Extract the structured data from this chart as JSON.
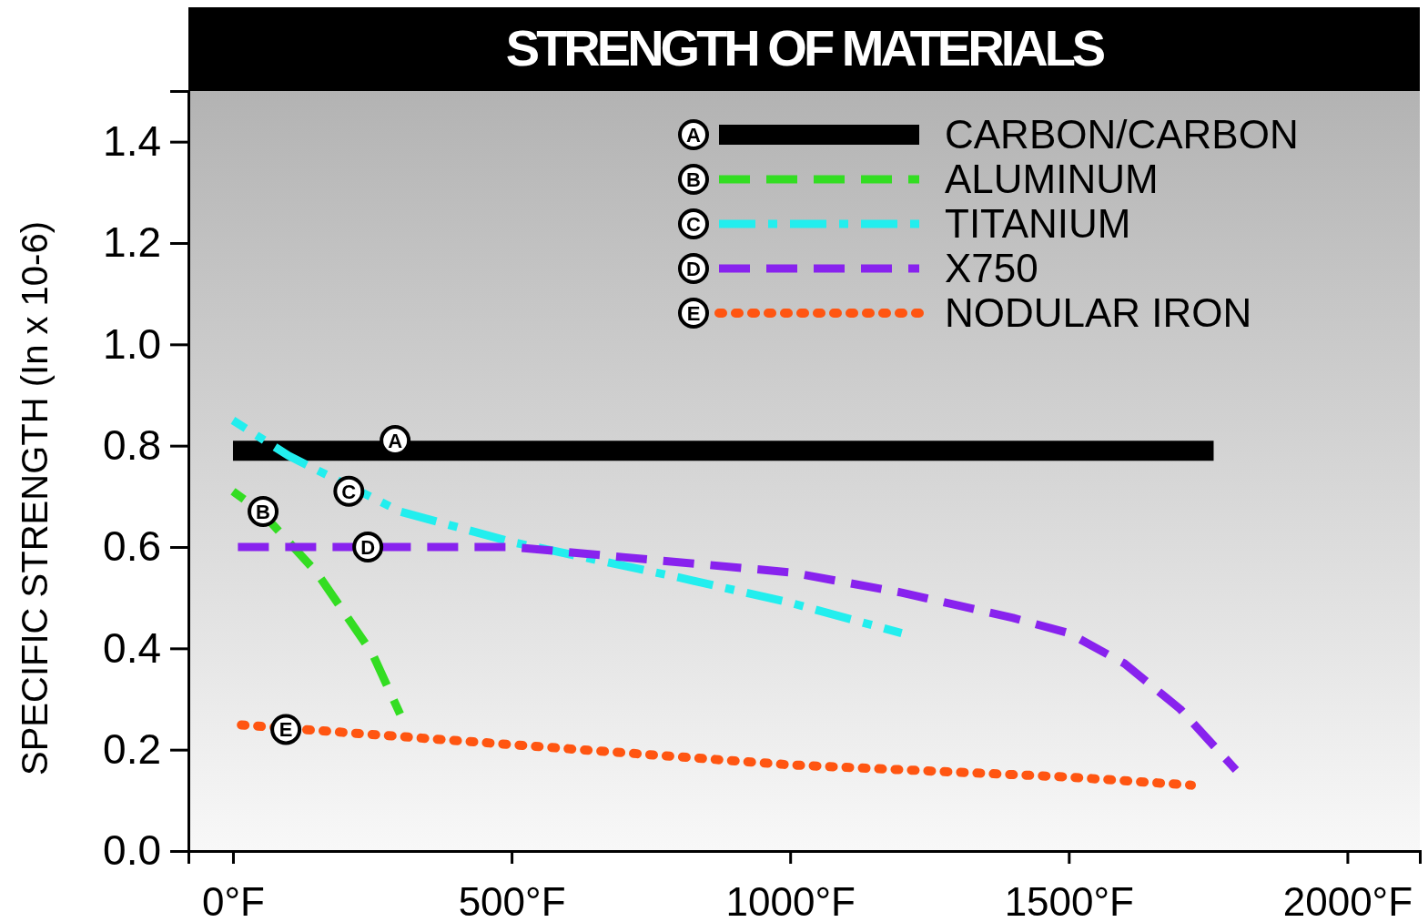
{
  "chart_data": {
    "type": "line",
    "title": "STRENGTH OF MATERIALS",
    "ylabel": "SPECIFIC STRENGTH (In x 10-6)",
    "xlim": [
      -80,
      2130
    ],
    "ylim": [
      0,
      1.5
    ],
    "xticks": [
      {
        "value": 0,
        "label": "0°F"
      },
      {
        "value": 500,
        "label": "500°F"
      },
      {
        "value": 1000,
        "label": "1000°F"
      },
      {
        "value": 1500,
        "label": "1500°F"
      },
      {
        "value": 2000,
        "label": "2000°F"
      }
    ],
    "yticks": [
      {
        "value": 0,
        "label": "0.0"
      },
      {
        "value": 0.2,
        "label": "0.2"
      },
      {
        "value": 0.4,
        "label": "0.4"
      },
      {
        "value": 0.6,
        "label": "0.6"
      },
      {
        "value": 0.8,
        "label": "0.8"
      },
      {
        "value": 1.0,
        "label": "1.0"
      },
      {
        "value": 1.2,
        "label": "1.2"
      },
      {
        "value": 1.4,
        "label": "1.4"
      }
    ],
    "legend": "top right",
    "grid": false,
    "marker": "none",
    "series": [
      {
        "name": "CARBON/CARBON",
        "color": "#000000",
        "line_style": "solid",
        "x": [
          0,
          1760
        ],
        "values": [
          0.79,
          0.79
        ]
      },
      {
        "name": "ALUMINUM",
        "color": "#33dd22",
        "line_style": "dashed",
        "x": [
          0,
          50,
          100,
          150,
          200,
          250,
          300
        ],
        "values": [
          0.71,
          0.67,
          0.61,
          0.55,
          0.47,
          0.39,
          0.27
        ]
      },
      {
        "name": "TITANIUM",
        "color": "#22eeee",
        "line_style": "dashdot",
        "x": [
          0,
          100,
          300,
          500,
          800,
          1000,
          1200
        ],
        "values": [
          0.85,
          0.78,
          0.67,
          0.61,
          0.54,
          0.49,
          0.43
        ]
      },
      {
        "name": "X750",
        "color": "#8822ee",
        "line_style": "dashed",
        "x": [
          0,
          500,
          700,
          1000,
          1200,
          1400,
          1500,
          1600,
          1700,
          1800
        ],
        "values": [
          0.6,
          0.6,
          0.58,
          0.55,
          0.51,
          0.46,
          0.43,
          0.37,
          0.28,
          0.16
        ]
      },
      {
        "name": "NODULAR IRON",
        "color": "#ff5511",
        "line_style": "dotted",
        "x": [
          0,
          500,
          1000,
          1500,
          1720
        ],
        "values": [
          0.25,
          0.21,
          0.17,
          0.146,
          0.13
        ]
      }
    ],
    "annotations": [
      {
        "text": "A",
        "x": 291,
        "y": 0.81
      },
      {
        "text": "B",
        "x": 54,
        "y": 0.67
      },
      {
        "text": "C",
        "x": 208,
        "y": 0.71
      },
      {
        "text": "D",
        "x": 242,
        "y": 0.6
      },
      {
        "text": "E",
        "x": 95,
        "y": 0.24
      }
    ]
  }
}
